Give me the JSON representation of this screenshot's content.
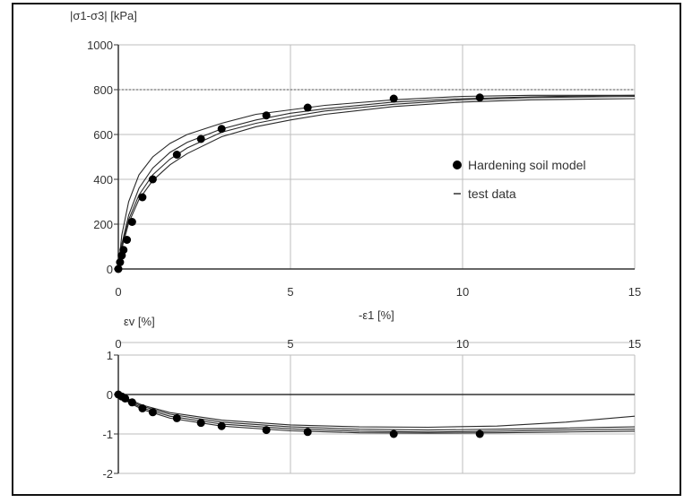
{
  "chart_data": [
    {
      "type": "line",
      "ylabel": "|σ1-σ3| [kPa]",
      "xlabel": "-ε1 [%]",
      "xlim": [
        0,
        15
      ],
      "ylim": [
        0,
        1000
      ],
      "x_ticks": [
        "0",
        "5",
        "10",
        "15"
      ],
      "y_ticks": [
        "0",
        "200",
        "400",
        "600",
        "800",
        "1000"
      ],
      "grid": true,
      "legend_position": "right",
      "legend": [
        {
          "label": "Hardening soil model",
          "marker": "filled-circle"
        },
        {
          "label": "test data",
          "marker": "line"
        }
      ],
      "series": [
        {
          "name": "Hardening soil model",
          "points": [
            [
              0,
              0
            ],
            [
              0.05,
              30
            ],
            [
              0.1,
              60
            ],
            [
              0.15,
              85
            ],
            [
              0.25,
              130
            ],
            [
              0.4,
              210
            ],
            [
              0.7,
              320
            ],
            [
              1.0,
              400
            ],
            [
              1.7,
              510
            ],
            [
              2.4,
              580
            ],
            [
              3.0,
              625
            ],
            [
              4.3,
              685
            ],
            [
              5.5,
              720
            ],
            [
              8.0,
              760
            ],
            [
              10.5,
              765
            ]
          ]
        },
        {
          "name": "test data",
          "curves": [
            [
              [
                0,
                0
              ],
              [
                0.1,
                100
              ],
              [
                0.3,
                220
              ],
              [
                0.6,
                330
              ],
              [
                1,
                420
              ],
              [
                1.5,
                490
              ],
              [
                2,
                540
              ],
              [
                3,
                610
              ],
              [
                4,
                650
              ],
              [
                5,
                680
              ],
              [
                6,
                705
              ],
              [
                8,
                735
              ],
              [
                10,
                755
              ],
              [
                12,
                765
              ],
              [
                15,
                770
              ]
            ],
            [
              [
                0,
                0
              ],
              [
                0.1,
                110
              ],
              [
                0.3,
                240
              ],
              [
                0.6,
                360
              ],
              [
                1,
                450
              ],
              [
                1.5,
                520
              ],
              [
                2,
                565
              ],
              [
                3,
                625
              ],
              [
                4,
                665
              ],
              [
                5,
                695
              ],
              [
                6,
                715
              ],
              [
                8,
                745
              ],
              [
                10,
                760
              ],
              [
                12,
                768
              ],
              [
                15,
                775
              ]
            ],
            [
              [
                0,
                0
              ],
              [
                0.1,
                90
              ],
              [
                0.3,
                205
              ],
              [
                0.6,
                310
              ],
              [
                1,
                395
              ],
              [
                1.5,
                465
              ],
              [
                2,
                515
              ],
              [
                3,
                590
              ],
              [
                4,
                635
              ],
              [
                5,
                665
              ],
              [
                6,
                690
              ],
              [
                8,
                725
              ],
              [
                10,
                745
              ],
              [
                12,
                755
              ],
              [
                15,
                760
              ]
            ],
            [
              [
                0,
                0
              ],
              [
                0.1,
                150
              ],
              [
                0.3,
                300
              ],
              [
                0.6,
                420
              ],
              [
                1,
                500
              ],
              [
                1.5,
                560
              ],
              [
                2,
                600
              ],
              [
                3,
                650
              ],
              [
                4,
                690
              ],
              [
                5,
                710
              ],
              [
                6,
                730
              ],
              [
                8,
                755
              ],
              [
                10,
                770
              ],
              [
                12,
                775
              ],
              [
                15,
                775
              ]
            ]
          ]
        }
      ]
    },
    {
      "type": "line",
      "ylabel": "εv [%]",
      "xlim": [
        0,
        15
      ],
      "ylim": [
        -2,
        1
      ],
      "x_ticks": [
        "0",
        "5",
        "10",
        "15"
      ],
      "y_ticks": [
        "1",
        "0",
        "-1",
        "-2"
      ],
      "grid": true,
      "series": [
        {
          "name": "Hardening soil model",
          "points": [
            [
              0,
              0
            ],
            [
              0.1,
              -0.05
            ],
            [
              0.2,
              -0.1
            ],
            [
              0.4,
              -0.2
            ],
            [
              0.7,
              -0.35
            ],
            [
              1.0,
              -0.45
            ],
            [
              1.7,
              -0.6
            ],
            [
              2.4,
              -0.72
            ],
            [
              3.0,
              -0.8
            ],
            [
              4.3,
              -0.9
            ],
            [
              5.5,
              -0.95
            ],
            [
              8.0,
              -1.0
            ],
            [
              10.5,
              -1.0
            ]
          ]
        },
        {
          "name": "test data",
          "curves": [
            [
              [
                0,
                0
              ],
              [
                0.3,
                -0.15
              ],
              [
                0.7,
                -0.3
              ],
              [
                1.5,
                -0.5
              ],
              [
                3,
                -0.7
              ],
              [
                5,
                -0.82
              ],
              [
                7,
                -0.88
              ],
              [
                9,
                -0.9
              ],
              [
                11,
                -0.88
              ],
              [
                13,
                -0.85
              ],
              [
                15,
                -0.82
              ]
            ],
            [
              [
                0,
                0
              ],
              [
                0.3,
                -0.12
              ],
              [
                0.7,
                -0.27
              ],
              [
                1.5,
                -0.46
              ],
              [
                3,
                -0.65
              ],
              [
                5,
                -0.77
              ],
              [
                7,
                -0.82
              ],
              [
                9,
                -0.83
              ],
              [
                11,
                -0.8
              ],
              [
                13,
                -0.7
              ],
              [
                15,
                -0.55
              ]
            ],
            [
              [
                0,
                0
              ],
              [
                0.3,
                -0.18
              ],
              [
                0.7,
                -0.34
              ],
              [
                1.5,
                -0.55
              ],
              [
                3,
                -0.75
              ],
              [
                5,
                -0.87
              ],
              [
                7,
                -0.93
              ],
              [
                9,
                -0.95
              ],
              [
                11,
                -0.93
              ],
              [
                13,
                -0.9
              ],
              [
                15,
                -0.88
              ]
            ],
            [
              [
                0,
                0
              ],
              [
                0.3,
                -0.2
              ],
              [
                0.7,
                -0.38
              ],
              [
                1.5,
                -0.6
              ],
              [
                3,
                -0.8
              ],
              [
                5,
                -0.92
              ],
              [
                7,
                -0.97
              ],
              [
                9,
                -0.98
              ],
              [
                11,
                -0.97
              ],
              [
                13,
                -0.95
              ],
              [
                15,
                -0.93
              ]
            ]
          ]
        }
      ]
    }
  ]
}
